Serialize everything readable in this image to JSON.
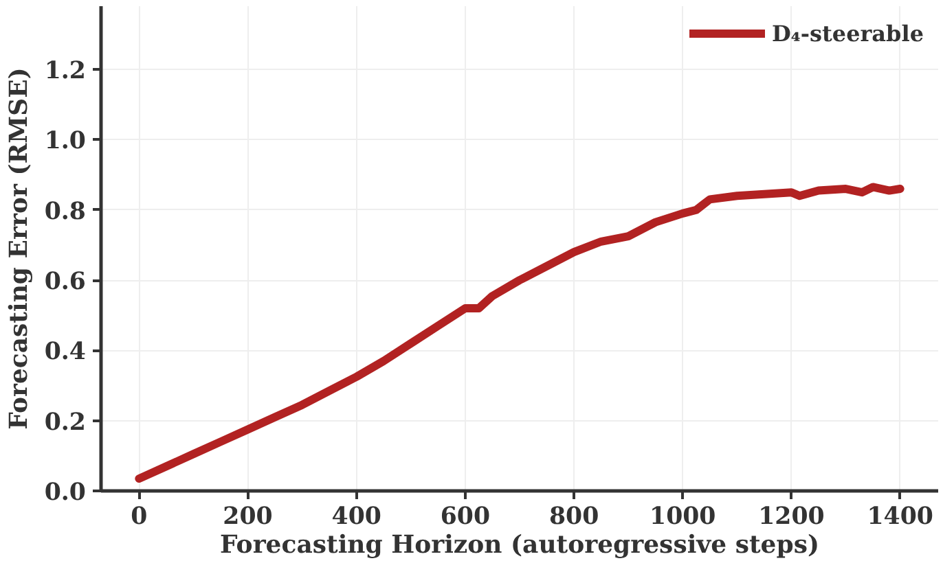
{
  "chart_data": {
    "type": "line",
    "xlabel": "Forecasting Horizon (autoregressive steps)",
    "ylabel": "Forecasting Error (RMSE)",
    "x": [
      0,
      50,
      100,
      150,
      200,
      250,
      300,
      350,
      400,
      450,
      500,
      550,
      600,
      625,
      650,
      700,
      750,
      800,
      850,
      900,
      950,
      1000,
      1025,
      1050,
      1100,
      1150,
      1200,
      1215,
      1250,
      1300,
      1330,
      1350,
      1380,
      1400
    ],
    "series": [
      {
        "name": "D₄-steerable",
        "color": "#b22222",
        "values": [
          0.035,
          0.07,
          0.105,
          0.14,
          0.175,
          0.21,
          0.245,
          0.285,
          0.325,
          0.37,
          0.42,
          0.47,
          0.52,
          0.52,
          0.555,
          0.6,
          0.64,
          0.68,
          0.71,
          0.725,
          0.765,
          0.79,
          0.8,
          0.83,
          0.84,
          0.845,
          0.85,
          0.84,
          0.855,
          0.86,
          0.85,
          0.865,
          0.855,
          0.86
        ]
      }
    ],
    "xlim": [
      -70,
      1470
    ],
    "ylim": [
      0,
      1.38
    ],
    "xticks": [
      0,
      200,
      400,
      600,
      800,
      1000,
      1200,
      1400
    ],
    "yticks": [
      {
        "value": 0,
        "label": "0.0"
      },
      0.2,
      0.4,
      0.6,
      0.8,
      {
        "value": 1,
        "label": "1.0"
      },
      1.2
    ],
    "grid": true,
    "legend": "top right",
    "line_style": "solid"
  }
}
